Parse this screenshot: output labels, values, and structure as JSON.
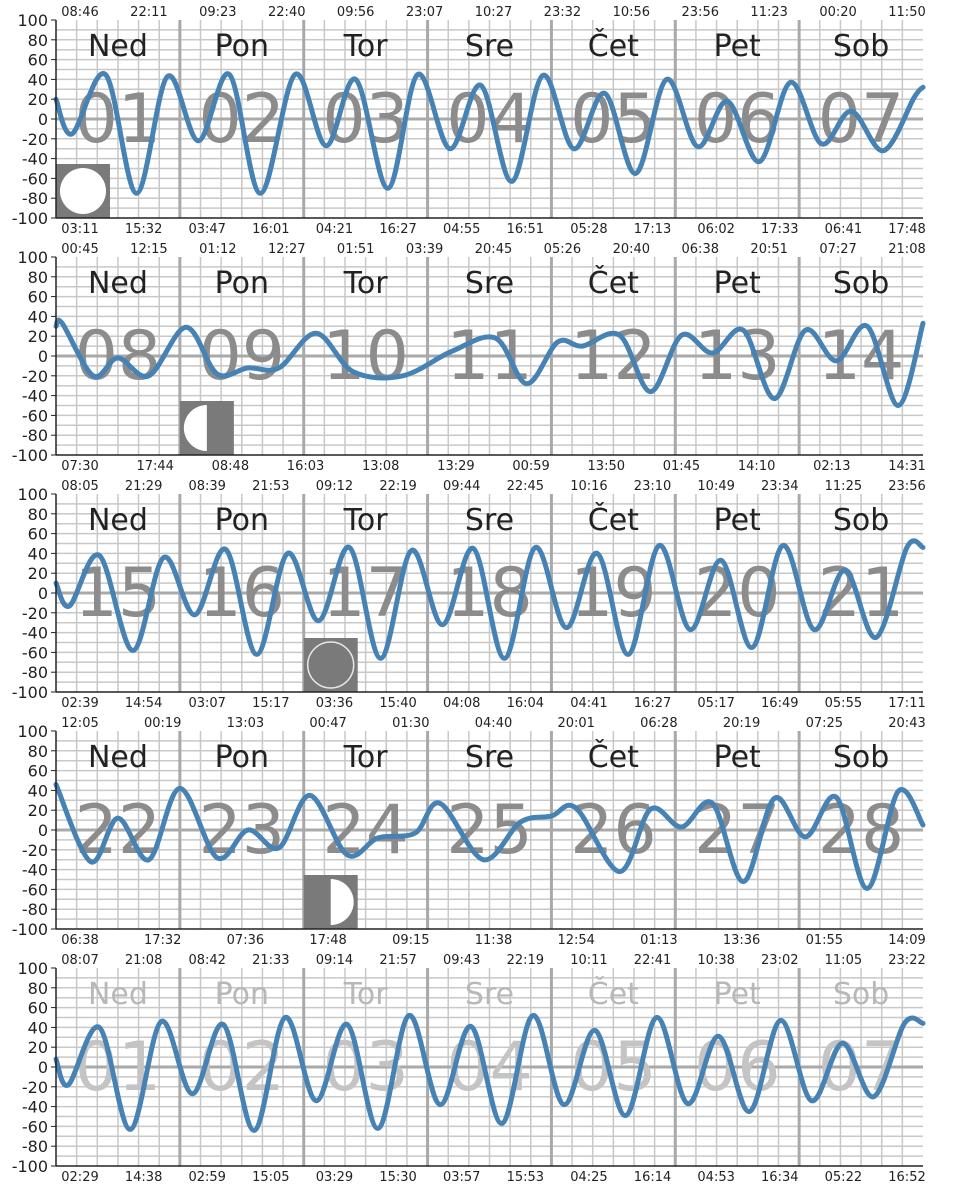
{
  "chart_data": [
    {
      "type": "line",
      "panel": 1,
      "ylim": [
        -100,
        100
      ],
      "yticks": [
        -100,
        -80,
        -60,
        -40,
        -20,
        0,
        20,
        40,
        60,
        80,
        100
      ],
      "day_names": [
        "Ned",
        "Pon",
        "Tor",
        "Sre",
        "Čet",
        "Pet",
        "Sob"
      ],
      "day_numbers": [
        "01",
        "02",
        "03",
        "04",
        "05",
        "06",
        "07"
      ],
      "faded": false,
      "moon_phase": "full",
      "moon_day_index": 0,
      "top_times_row1": [
        "08:46",
        "22:11",
        "09:23",
        "22:40",
        "09:56",
        "23:07",
        "10:27",
        "23:32",
        "10:56",
        "23:56",
        "11:23",
        "00:20",
        "11:50"
      ],
      "top_times_row2": [],
      "bottom_times": [
        "03:11",
        "15:32",
        "03:47",
        "16:01",
        "04:21",
        "16:27",
        "04:55",
        "16:51",
        "05:28",
        "17:13",
        "06:02",
        "17:33",
        "06:41",
        "17:48"
      ],
      "series": [
        {
          "x_days": [
            0,
            0.13,
            0.4,
            0.65,
            0.9,
            1.15,
            1.4,
            1.65,
            1.93,
            2.18,
            2.42,
            2.68,
            2.92,
            3.18,
            3.43,
            3.68,
            3.93,
            4.18,
            4.43,
            4.68,
            4.93,
            5.18,
            5.42,
            5.68,
            5.93,
            6.18,
            6.42,
            6.68,
            6.93,
            7.0
          ],
          "values": [
            20,
            -15,
            45,
            -75,
            43,
            -22,
            45,
            -75,
            45,
            -27,
            40,
            -70,
            45,
            -30,
            34,
            -63,
            44,
            -30,
            26,
            -55,
            40,
            -28,
            18,
            -43,
            37,
            -25,
            8,
            -32,
            22,
            32
          ]
        }
      ]
    },
    {
      "type": "line",
      "panel": 2,
      "ylim": [
        -100,
        100
      ],
      "yticks": [
        -100,
        -80,
        -60,
        -40,
        -20,
        0,
        20,
        40,
        60,
        80,
        100
      ],
      "day_names": [
        "Ned",
        "Pon",
        "Tor",
        "Sre",
        "Čet",
        "Pet",
        "Sob"
      ],
      "day_numbers": [
        "08",
        "09",
        "10",
        "11",
        "12",
        "13",
        "14"
      ],
      "faded": false,
      "moon_phase": "last-quarter",
      "moon_day_index": 1,
      "top_times_row1": [
        "00:45",
        "12:15",
        "01:12",
        "12:27",
        "01:51",
        "03:39",
        "20:45",
        "05:26",
        "20:40",
        "06:38",
        "20:51",
        "07:27",
        "21:08"
      ],
      "top_times_row2": [],
      "bottom_times": [
        "07:30",
        "17:44",
        "08:48",
        "16:03",
        "13:08",
        "13:29",
        "00:59",
        "13:50",
        "01:45",
        "14:10",
        "02:13",
        "14:31"
      ],
      "series": [
        {
          "x_days": [
            0,
            0.05,
            0.3,
            0.5,
            0.75,
            1.05,
            1.3,
            1.55,
            1.8,
            2.1,
            2.4,
            2.8,
            3.2,
            3.55,
            3.8,
            4.05,
            4.25,
            4.55,
            4.8,
            5.05,
            5.3,
            5.55,
            5.8,
            6.05,
            6.3,
            6.55,
            6.8,
            7.0
          ],
          "values": [
            30,
            33,
            -20,
            -2,
            -20,
            29,
            -18,
            -12,
            -12,
            23,
            -16,
            -20,
            5,
            18,
            -28,
            14,
            10,
            21,
            -36,
            21,
            3,
            26,
            -43,
            26,
            -5,
            30,
            -50,
            33
          ]
        }
      ]
    },
    {
      "type": "line",
      "panel": 3,
      "ylim": [
        -100,
        100
      ],
      "yticks": [
        -100,
        -80,
        -60,
        -40,
        -20,
        0,
        20,
        40,
        60,
        80,
        100
      ],
      "day_names": [
        "Ned",
        "Pon",
        "Tor",
        "Sre",
        "Čet",
        "Pet",
        "Sob"
      ],
      "day_numbers": [
        "15",
        "16",
        "17",
        "18",
        "19",
        "20",
        "21"
      ],
      "faded": false,
      "moon_phase": "new",
      "moon_day_index": 2,
      "top_times_row1": [
        "08:05",
        "21:29",
        "08:39",
        "21:53",
        "09:12",
        "22:19",
        "09:44",
        "22:45",
        "10:16",
        "23:10",
        "10:49",
        "23:34",
        "11:25",
        "23:56"
      ],
      "top_times_row2": [],
      "bottom_times": [
        "02:39",
        "14:54",
        "03:07",
        "15:17",
        "03:36",
        "15:40",
        "04:08",
        "16:04",
        "04:41",
        "16:27",
        "05:17",
        "16:49",
        "05:55",
        "17:11"
      ],
      "series": [
        {
          "x_days": [
            0,
            0.11,
            0.35,
            0.62,
            0.87,
            1.12,
            1.37,
            1.62,
            1.87,
            2.12,
            2.37,
            2.62,
            2.87,
            3.12,
            3.37,
            3.62,
            3.87,
            4.12,
            4.37,
            4.62,
            4.87,
            5.12,
            5.37,
            5.62,
            5.87,
            6.12,
            6.37,
            6.62,
            6.87,
            7.0
          ],
          "values": [
            10,
            -13,
            38,
            -58,
            36,
            -22,
            44,
            -62,
            40,
            -28,
            46,
            -66,
            43,
            -32,
            45,
            -66,
            46,
            -35,
            40,
            -62,
            48,
            -37,
            33,
            -55,
            48,
            -37,
            23,
            -45,
            46,
            46
          ]
        }
      ]
    },
    {
      "type": "line",
      "panel": 4,
      "ylim": [
        -100,
        100
      ],
      "yticks": [
        -100,
        -80,
        -60,
        -40,
        -20,
        0,
        20,
        40,
        60,
        80,
        100
      ],
      "day_names": [
        "Ned",
        "Pon",
        "Tor",
        "Sre",
        "Čet",
        "Pet",
        "Sob"
      ],
      "day_numbers": [
        "22",
        "23",
        "24",
        "25",
        "26",
        "27",
        "28"
      ],
      "faded": false,
      "moon_phase": "first-quarter",
      "moon_day_index": 2,
      "top_times_row1": [
        "12:05",
        "00:19",
        "13:03",
        "00:47",
        "01:30",
        "04:40",
        "20:01",
        "06:28",
        "20:19",
        "07:25",
        "20:43"
      ],
      "top_times_row2": [],
      "bottom_times": [
        "06:38",
        "17:32",
        "07:36",
        "17:48",
        "09:15",
        "11:38",
        "12:54",
        "01:13",
        "13:36",
        "01:55",
        "14:09"
      ],
      "series": [
        {
          "x_days": [
            0,
            0.28,
            0.5,
            0.75,
            1.0,
            1.3,
            1.55,
            1.8,
            2.05,
            2.35,
            2.6,
            2.9,
            3.1,
            3.45,
            3.75,
            4.0,
            4.2,
            4.55,
            4.8,
            5.05,
            5.3,
            5.55,
            5.8,
            6.05,
            6.3,
            6.55,
            6.8,
            7.0
          ],
          "values": [
            46,
            -32,
            12,
            -30,
            42,
            -28,
            0,
            -18,
            35,
            -25,
            -8,
            -3,
            27,
            -30,
            8,
            14,
            22,
            -42,
            21,
            3,
            27,
            -52,
            32,
            -7,
            33,
            -59,
            39,
            5
          ]
        }
      ]
    },
    {
      "type": "line",
      "panel": 5,
      "ylim": [
        -100,
        100
      ],
      "yticks": [
        -100,
        -80,
        -60,
        -40,
        -20,
        0,
        20,
        40,
        60,
        80,
        100
      ],
      "day_names": [
        "Ned",
        "Pon",
        "Tor",
        "Sre",
        "Čet",
        "Pet",
        "Sob"
      ],
      "day_numbers": [
        "01",
        "02",
        "03",
        "04",
        "05",
        "06",
        "07"
      ],
      "faded": true,
      "moon_phase": "",
      "moon_day_index": -1,
      "top_times_row1": [
        "08:07",
        "21:08",
        "08:42",
        "21:33",
        "09:14",
        "21:57",
        "09:43",
        "22:19",
        "10:11",
        "22:41",
        "10:38",
        "23:02",
        "11:05",
        "23:22"
      ],
      "top_times_row2": [],
      "bottom_times": [
        "02:29",
        "14:38",
        "02:59",
        "15:05",
        "03:29",
        "15:30",
        "03:57",
        "15:53",
        "04:25",
        "16:14",
        "04:53",
        "16:34",
        "05:22",
        "16:52"
      ],
      "series": [
        {
          "x_days": [
            0,
            0.1,
            0.35,
            0.6,
            0.85,
            1.1,
            1.35,
            1.6,
            1.85,
            2.1,
            2.35,
            2.6,
            2.85,
            3.1,
            3.35,
            3.6,
            3.85,
            4.1,
            4.35,
            4.6,
            4.85,
            5.1,
            5.35,
            5.6,
            5.85,
            6.1,
            6.35,
            6.6,
            6.85,
            7.0
          ],
          "values": [
            8,
            -18,
            40,
            -63,
            46,
            -27,
            43,
            -64,
            50,
            -34,
            43,
            -62,
            52,
            -38,
            41,
            -57,
            52,
            -38,
            37,
            -49,
            50,
            -37,
            31,
            -45,
            47,
            -34,
            24,
            -30,
            44,
            44
          ]
        }
      ]
    }
  ],
  "colors": {
    "line": "#4682b4",
    "grid": "#c8c8c8",
    "day_separator": "#a9a9a9",
    "zero_line": "#a9a9a9",
    "day_name": "#222222",
    "day_name_faded": "#b8b8b8",
    "day_number": "#8c8c8c",
    "day_number_faded": "#c4c4c4",
    "moon_bg": "#7a7a7a",
    "moon_light": "#ffffff"
  }
}
